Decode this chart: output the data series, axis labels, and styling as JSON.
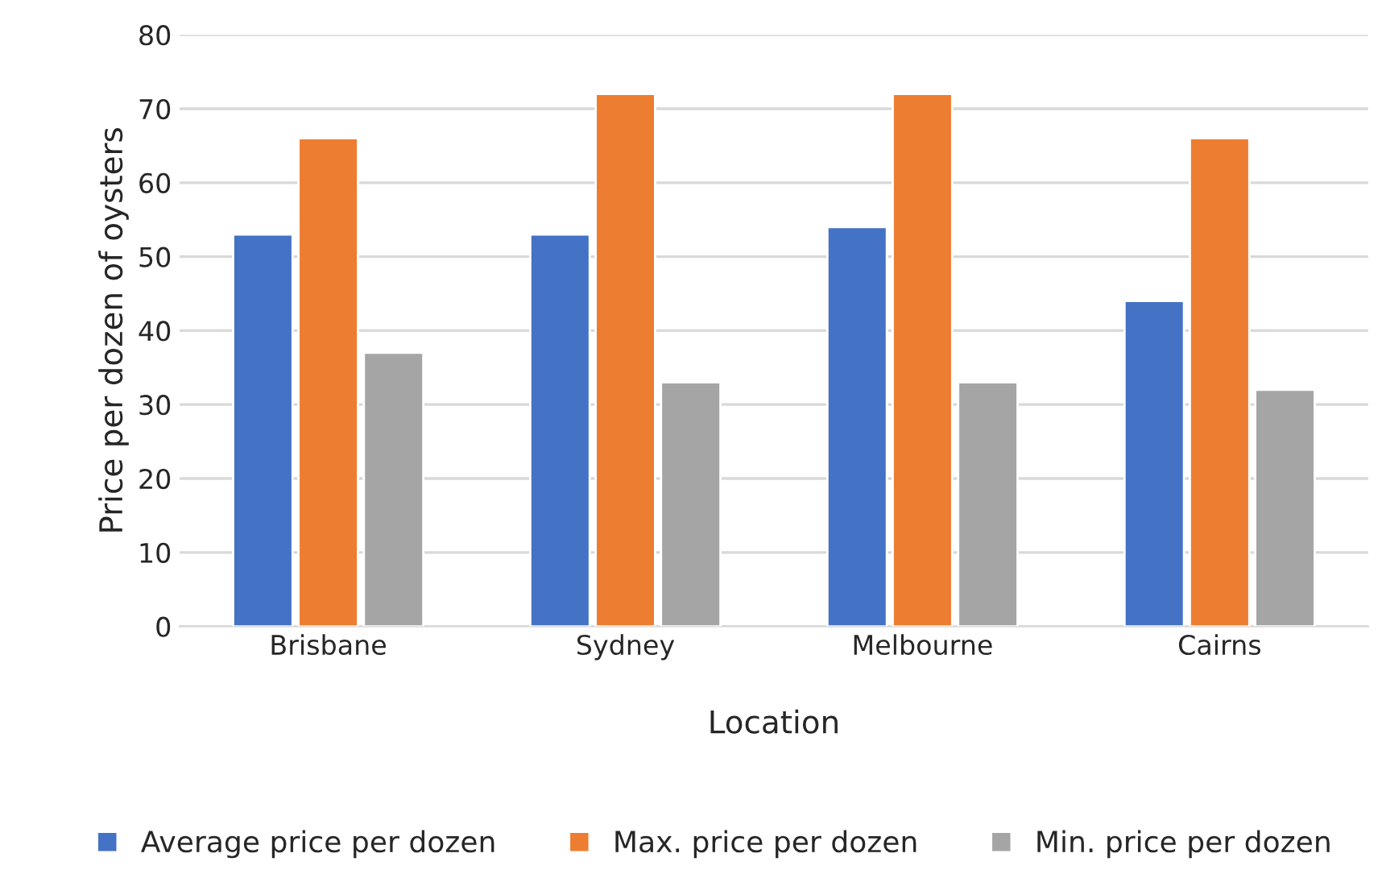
{
  "chart_data": {
    "type": "bar",
    "xlabel": "Location",
    "ylabel": "Price per dozen of oysters",
    "categories": [
      "Brisbane",
      "Sydney",
      "Melbourne",
      "Cairns"
    ],
    "series": [
      {
        "name": "Average price per dozen",
        "color": "#4472c4",
        "values": [
          53,
          53,
          54,
          44
        ]
      },
      {
        "name": "Max. price per dozen",
        "color": "#ed7d31",
        "values": [
          66,
          72,
          72,
          66
        ]
      },
      {
        "name": "Min. price per dozen",
        "color": "#a5a5a5",
        "values": [
          37,
          33,
          33,
          32
        ]
      }
    ],
    "ylim": [
      0,
      80
    ],
    "yticks": [
      0,
      10,
      20,
      30,
      40,
      50,
      60,
      70,
      80
    ],
    "grid": "y",
    "legend": "bottom"
  }
}
